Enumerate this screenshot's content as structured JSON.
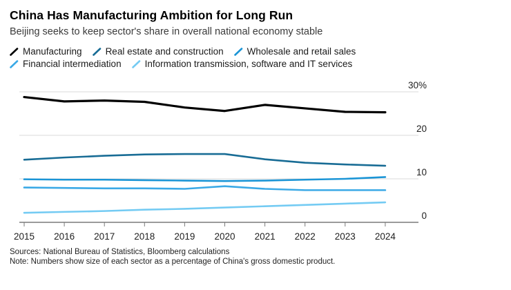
{
  "header": {
    "title": "China Has Manufacturing Ambition for Long Run",
    "subtitle": "Beijing seeks to keep sector's share in overall national economy stable"
  },
  "chart_data": {
    "type": "line",
    "unit": "% of GDP",
    "x": [
      2015,
      2016,
      2017,
      2018,
      2019,
      2020,
      2021,
      2022,
      2023,
      2024
    ],
    "x_axis": {
      "tick_labels": [
        "2015",
        "2016",
        "2017",
        "2018",
        "2019",
        "2020",
        "2021",
        "2022",
        "2023",
        "2024"
      ]
    },
    "y_axis": {
      "range": [
        0,
        31.5
      ],
      "ticks": [
        {
          "value": 0,
          "label": "0"
        },
        {
          "value": 10,
          "label": "10"
        },
        {
          "value": 20,
          "label": "20"
        },
        {
          "value": 30,
          "label": "30%"
        }
      ]
    },
    "grid": "horizontal",
    "legend_position": "top",
    "series": [
      {
        "name": "Manufacturing",
        "color": "#000000",
        "values": [
          28.8,
          27.8,
          28.0,
          27.7,
          26.4,
          25.6,
          27.0,
          26.2,
          25.4,
          25.3
        ]
      },
      {
        "name": "Real estate and construction",
        "color": "#186c95",
        "values": [
          14.4,
          14.9,
          15.3,
          15.6,
          15.7,
          15.7,
          14.5,
          13.7,
          13.3,
          13.0
        ]
      },
      {
        "name": "Wholesale and retail sales",
        "color": "#1b95d6",
        "values": [
          9.9,
          9.8,
          9.8,
          9.7,
          9.6,
          9.5,
          9.6,
          9.8,
          10.0,
          10.4
        ]
      },
      {
        "name": "Financial intermediation",
        "color": "#3aa9e6",
        "values": [
          8.0,
          7.9,
          7.8,
          7.8,
          7.7,
          8.3,
          7.7,
          7.4,
          7.4,
          7.4
        ]
      },
      {
        "name": "Information transmission, software and IT services",
        "color": "#74cbf3",
        "values": [
          2.2,
          2.4,
          2.6,
          2.9,
          3.1,
          3.4,
          3.7,
          4.0,
          4.3,
          4.6
        ]
      }
    ]
  },
  "colors": {
    "gridline": "#d8d8d8",
    "axis": "#7a7a7a",
    "text": "#1f1f1f"
  },
  "footer": {
    "sources": "Sources: National Bureau of Statistics, Bloomberg calculations",
    "note": "Note: Numbers show size of each sector as a percentage of China's gross domestic product."
  }
}
